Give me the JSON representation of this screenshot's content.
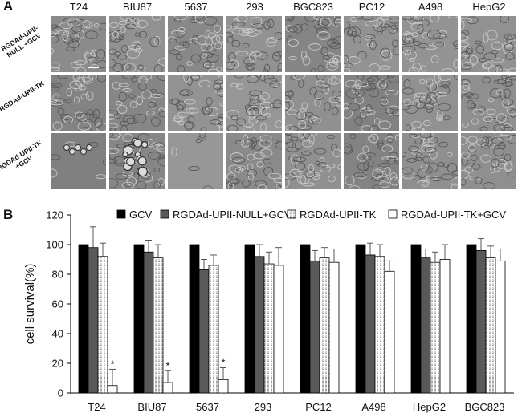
{
  "panel_a": {
    "letter": "A",
    "cell_lines": [
      "T24",
      "BIU87",
      "5637",
      "293",
      "BGC823",
      "PC12",
      "A498",
      "HepG2"
    ],
    "rows": [
      "RGDAd-UPII-NULL +GCV",
      "RGDAd-UPII-TK",
      "RGDAd-UPII-TK +GCV"
    ]
  },
  "panel_b": {
    "letter": "B"
  },
  "colors": {
    "gcv": "#000000",
    "null_gcv": "#595959",
    "tk": "#ffffff",
    "tk_gcv": "#ffffff",
    "micro_bg": "#8f8f8f"
  },
  "chart_data": {
    "type": "bar",
    "categories": [
      "T24",
      "BIU87",
      "5637",
      "293",
      "PC12",
      "A498",
      "HepG2",
      "BGC823"
    ],
    "series": [
      {
        "name": "GCV",
        "values": [
          100,
          100,
          100,
          100,
          100,
          100,
          100,
          100
        ],
        "errors": [
          0,
          0,
          0,
          0,
          0,
          0,
          0,
          0
        ]
      },
      {
        "name": "RGDAd-UPII-NULL+GCV",
        "values": [
          98,
          95,
          83,
          92,
          89,
          93,
          91,
          96
        ],
        "errors": [
          14,
          8,
          7,
          8,
          7,
          8,
          6,
          8
        ]
      },
      {
        "name": "RGDAd-UPII-TK",
        "values": [
          92,
          91,
          86,
          87,
          91,
          92,
          88,
          91
        ],
        "errors": [
          9,
          9,
          7,
          8,
          7,
          8,
          7,
          8
        ]
      },
      {
        "name": "RGDAd-UPII-TK+GCV",
        "values": [
          5,
          7,
          9,
          86,
          88,
          82,
          90,
          89
        ],
        "errors": [
          11,
          8,
          8,
          12,
          9,
          7,
          10,
          8
        ]
      }
    ],
    "significance": [
      "*",
      "*",
      "*",
      "",
      "",
      "",
      "",
      ""
    ],
    "ylabel": "cell survival(%)",
    "xlabel": "",
    "ylim": [
      0,
      120
    ],
    "yticks": [
      0,
      20,
      40,
      60,
      80,
      100,
      120
    ],
    "legend_position": "top"
  }
}
